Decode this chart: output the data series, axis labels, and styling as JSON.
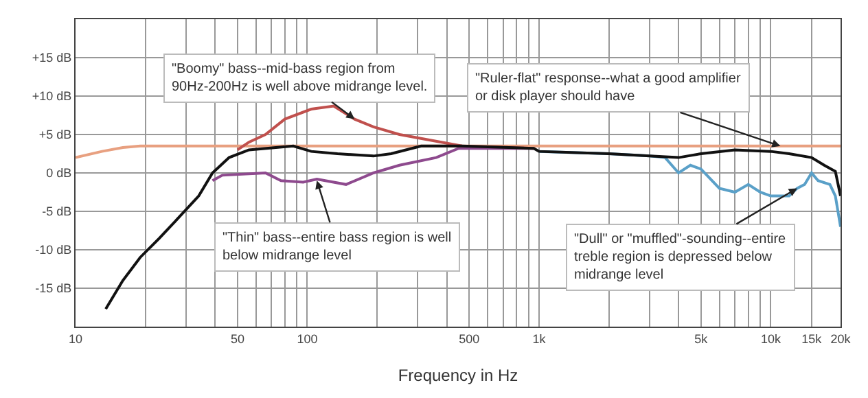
{
  "chart_data": {
    "type": "line",
    "xlabel": "Frequency in Hz",
    "log": "x",
    "grid": true,
    "line_style": "solid",
    "xlim": [
      10,
      20000
    ],
    "xticks": [
      10,
      {
        "value": 20,
        "label": null
      },
      {
        "value": 30,
        "label": null
      },
      {
        "value": 40,
        "label": null
      },
      50,
      {
        "value": 60,
        "label": null
      },
      {
        "value": 70,
        "label": null
      },
      {
        "value": 80,
        "label": null
      },
      {
        "value": 90,
        "label": null
      },
      100,
      {
        "value": 200,
        "label": null
      },
      {
        "value": 300,
        "label": null
      },
      {
        "value": 400,
        "label": null
      },
      500,
      {
        "value": 600,
        "label": null
      },
      {
        "value": 700,
        "label": null
      },
      {
        "value": 800,
        "label": null
      },
      {
        "value": 900,
        "label": null
      },
      {
        "value": 1000,
        "label": "1k"
      },
      {
        "value": 2000,
        "label": null
      },
      {
        "value": 3000,
        "label": null
      },
      {
        "value": 4000,
        "label": null
      },
      {
        "value": 5000,
        "label": "5k"
      },
      {
        "value": 6000,
        "label": null
      },
      {
        "value": 7000,
        "label": null
      },
      {
        "value": 8000,
        "label": null
      },
      {
        "value": 9000,
        "label": null
      },
      {
        "value": 10000,
        "label": "10k"
      },
      {
        "value": 15000,
        "label": "15k"
      },
      {
        "value": 20000,
        "label": "20k"
      }
    ],
    "ylim": [
      -20,
      20
    ],
    "yticks": [
      {
        "value": -15,
        "label": "-15 dB"
      },
      {
        "value": -10,
        "label": "-10 dB"
      },
      {
        "value": -5,
        "label": "-5 dB"
      },
      {
        "value": 0,
        "label": "0 dB"
      },
      {
        "value": 5,
        "label": "+5 dB"
      },
      {
        "value": 10,
        "label": "+10 dB"
      },
      {
        "value": 15,
        "label": "+15 dB"
      }
    ],
    "series": [
      {
        "color": "#e8a080",
        "x": [
          10,
          13,
          16,
          19,
          100,
          1000,
          10000,
          20000
        ],
        "values": [
          2,
          2.8,
          3.3,
          3.5,
          3.5,
          3.5,
          3.5,
          3.5
        ]
      },
      {
        "color": "#c0504d",
        "x": [
          50,
          56,
          66,
          80,
          104,
          130,
          160,
          193,
          250,
          465,
          950
        ],
        "values": [
          3,
          4,
          5,
          7,
          8.3,
          8.7,
          7,
          6,
          5,
          3.5,
          3.2
        ]
      },
      {
        "color": "#8e4a8e",
        "x": [
          39,
          43,
          66,
          77,
          96,
          110,
          147,
          193,
          250,
          360,
          450,
          950
        ],
        "values": [
          -1,
          -0.3,
          0,
          -1,
          -1.2,
          -0.8,
          -1.5,
          0,
          1,
          2,
          3.2,
          3.2
        ]
      },
      {
        "color": "#5aa0c8",
        "x": [
          1000,
          2000,
          3000,
          3500,
          4000,
          4500,
          5000,
          6000,
          7000,
          8000,
          9000,
          10000,
          12000,
          13000,
          14000,
          15000,
          16000,
          18000,
          19000,
          20000
        ],
        "values": [
          2.8,
          2.5,
          2.2,
          2,
          0,
          1,
          0.5,
          -2,
          -2.5,
          -1.5,
          -2.5,
          -3,
          -3,
          -2,
          -1.5,
          0,
          -1,
          -1.5,
          -3,
          -7
        ]
      },
      {
        "color": "#111111",
        "x": [
          13.5,
          16,
          19,
          23,
          27.5,
          34,
          39,
          46,
          56,
          87,
          104,
          135,
          193,
          230,
          310,
          465,
          950,
          1000,
          2000,
          3000,
          4000,
          5000,
          7000,
          10000,
          12000,
          15000,
          17000,
          19000,
          20000
        ],
        "values": [
          -17.7,
          -14,
          -11,
          -8.5,
          -6,
          -3,
          0,
          2,
          3,
          3.5,
          2.8,
          2.5,
          2.2,
          2.5,
          3.5,
          3.5,
          3.2,
          2.8,
          2.5,
          2.2,
          2,
          2.5,
          3,
          2.8,
          2.5,
          2,
          1,
          0.2,
          -3
        ]
      }
    ],
    "annotations": [
      {
        "text": "\"Boomy\" bass--mid-bass region from 90Hz-200Hz is well above midrange level.",
        "x": 160,
        "y": 7
      },
      {
        "text": "\"Ruler-flat\" response--what a good amplifier or disk player should have",
        "x": 11000,
        "y": 3.5
      },
      {
        "text": "\"Thin\" bass--entire bass region is well below midrange level",
        "x": 110,
        "y": -1
      },
      {
        "text": "\"Dull\" or \"muffled\"-sounding--entire treble region is depressed below midrange level",
        "x": 13000,
        "y": -2
      }
    ]
  }
}
